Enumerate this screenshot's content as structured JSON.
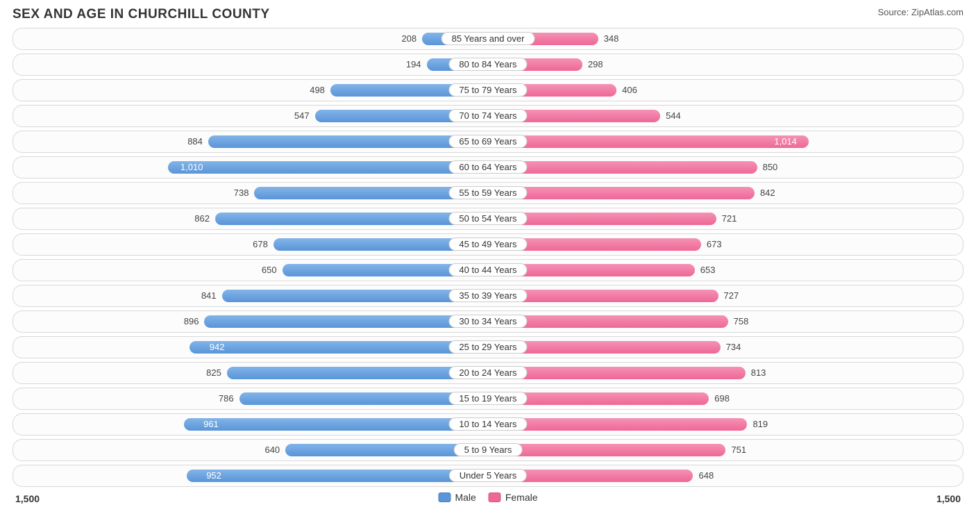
{
  "title": "SEX AND AGE IN CHURCHILL COUNTY",
  "source": "Source: ZipAtlas.com",
  "chart": {
    "type": "population-pyramid",
    "axis_max": 1500,
    "axis_label_left": "1,500",
    "axis_label_right": "1,500",
    "male_color": "#5a95d8",
    "female_color": "#ef6796",
    "background_color": "#ffffff",
    "row_border_color": "#d8d8d8",
    "label_fontsize": 13,
    "title_fontsize": 19,
    "legend": {
      "male": "Male",
      "female": "Female"
    },
    "inside_label_threshold": 900,
    "rows": [
      {
        "category": "85 Years and over",
        "male": 208,
        "male_label": "208",
        "female": 348,
        "female_label": "348"
      },
      {
        "category": "80 to 84 Years",
        "male": 194,
        "male_label": "194",
        "female": 298,
        "female_label": "298"
      },
      {
        "category": "75 to 79 Years",
        "male": 498,
        "male_label": "498",
        "female": 406,
        "female_label": "406"
      },
      {
        "category": "70 to 74 Years",
        "male": 547,
        "male_label": "547",
        "female": 544,
        "female_label": "544"
      },
      {
        "category": "65 to 69 Years",
        "male": 884,
        "male_label": "884",
        "female": 1014,
        "female_label": "1,014"
      },
      {
        "category": "60 to 64 Years",
        "male": 1010,
        "male_label": "1,010",
        "female": 850,
        "female_label": "850"
      },
      {
        "category": "55 to 59 Years",
        "male": 738,
        "male_label": "738",
        "female": 842,
        "female_label": "842"
      },
      {
        "category": "50 to 54 Years",
        "male": 862,
        "male_label": "862",
        "female": 721,
        "female_label": "721"
      },
      {
        "category": "45 to 49 Years",
        "male": 678,
        "male_label": "678",
        "female": 673,
        "female_label": "673"
      },
      {
        "category": "40 to 44 Years",
        "male": 650,
        "male_label": "650",
        "female": 653,
        "female_label": "653"
      },
      {
        "category": "35 to 39 Years",
        "male": 841,
        "male_label": "841",
        "female": 727,
        "female_label": "727"
      },
      {
        "category": "30 to 34 Years",
        "male": 896,
        "male_label": "896",
        "female": 758,
        "female_label": "758"
      },
      {
        "category": "25 to 29 Years",
        "male": 942,
        "male_label": "942",
        "female": 734,
        "female_label": "734"
      },
      {
        "category": "20 to 24 Years",
        "male": 825,
        "male_label": "825",
        "female": 813,
        "female_label": "813"
      },
      {
        "category": "15 to 19 Years",
        "male": 786,
        "male_label": "786",
        "female": 698,
        "female_label": "698"
      },
      {
        "category": "10 to 14 Years",
        "male": 961,
        "male_label": "961",
        "female": 819,
        "female_label": "819"
      },
      {
        "category": "5 to 9 Years",
        "male": 640,
        "male_label": "640",
        "female": 751,
        "female_label": "751"
      },
      {
        "category": "Under 5 Years",
        "male": 952,
        "male_label": "952",
        "female": 648,
        "female_label": "648"
      }
    ]
  }
}
